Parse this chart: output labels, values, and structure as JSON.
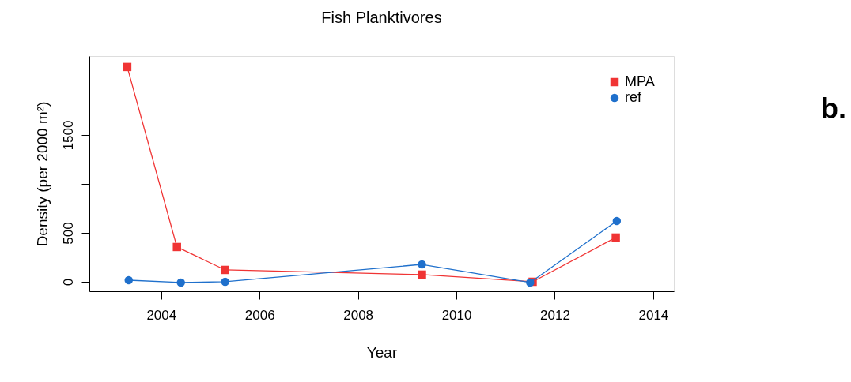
{
  "chart_data": {
    "type": "line",
    "title": "Fish Planktivores",
    "xlabel": "Year",
    "ylabel": "Density (per 2000 m²)",
    "annotations": [
      "b."
    ],
    "series": [
      {
        "name": "MPA",
        "color": "#f03434",
        "marker": "square",
        "x": [
          2003.31,
          2004.32,
          2005.3,
          2009.3,
          2011.55,
          2013.24
        ],
        "values": [
          2194,
          355,
          121,
          73,
          0,
          452
        ]
      },
      {
        "name": "ref",
        "color": "#1f70cc",
        "marker": "circle",
        "x": [
          2003.34,
          2004.4,
          2005.3,
          2009.3,
          2011.5,
          2013.26
        ],
        "values": [
          16,
          -8,
          0,
          177,
          -8,
          621
        ]
      }
    ],
    "xlim": [
      2002.54,
      2014.42
    ],
    "xticks": [
      2004,
      2006,
      2008,
      2010,
      2012,
      2014
    ],
    "ylim": [
      -97,
      2306
    ],
    "yticks": [
      0,
      500,
      {
        "value": 1000,
        "label": null
      },
      1500
    ],
    "legend": "top right",
    "grid": false,
    "line_style": "solid"
  }
}
